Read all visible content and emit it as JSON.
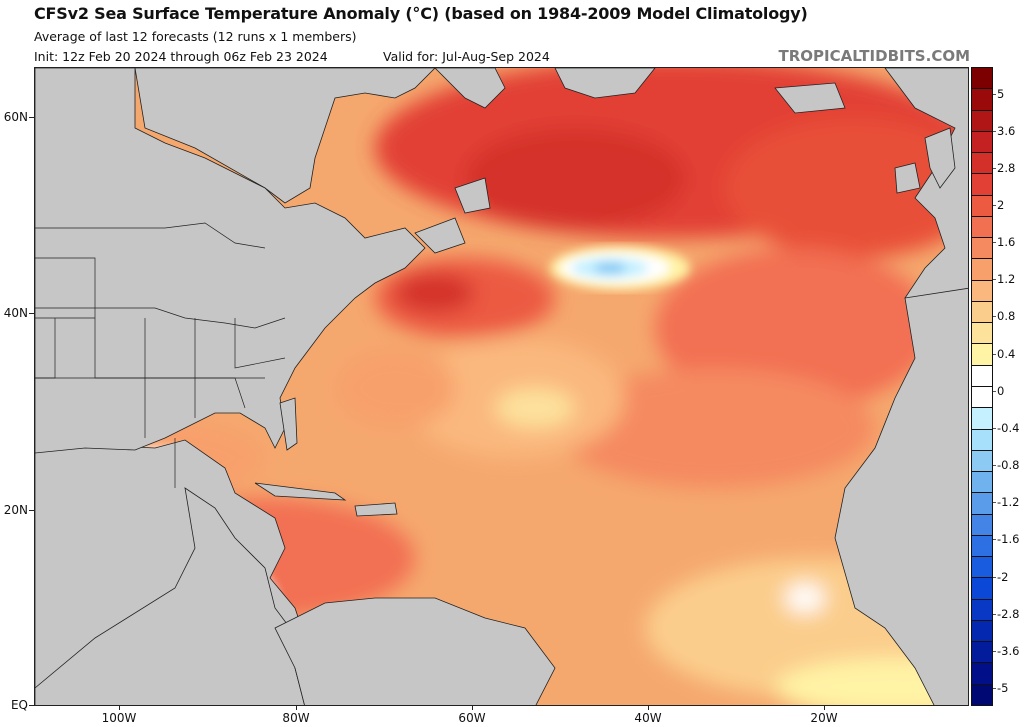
{
  "header": {
    "title": "CFSv2 Sea Surface Temperature Anomaly (°C) (based on 1984-2009 Model Climatology)",
    "subtitle": "Average of last 12 forecasts (12 runs x 1 members)",
    "init": "Init: 12z Feb 20 2024 through 06z Feb 23 2024",
    "valid": "Valid for: Jul-Aug-Sep 2024",
    "brand": "TROPICALTIDBITS.COM"
  },
  "axes": {
    "lat_labels": [
      "60N",
      "40N",
      "20N",
      "EQ"
    ],
    "lon_labels": [
      "100W",
      "80W",
      "60W",
      "40W",
      "20W"
    ]
  },
  "colorbar": {
    "labels": [
      "5",
      "3.6",
      "2.8",
      "2",
      "1.6",
      "1.2",
      "0.8",
      "0.4",
      "0",
      "-0.4",
      "-0.8",
      "-1.2",
      "-1.6",
      "-2",
      "-2.8",
      "-3.6",
      "-5"
    ],
    "colors": [
      "#7d0000",
      "#9b0a0a",
      "#b01616",
      "#c42222",
      "#d4302a",
      "#e24034",
      "#ec5a42",
      "#f27052",
      "#f58a60",
      "#f8a06c",
      "#fab87e",
      "#fbcd8c",
      "#fde29c",
      "#fff3a6",
      "#ffffff",
      "#ffffff",
      "#c4f0ff",
      "#a6e0fa",
      "#8ccaf4",
      "#70b2ee",
      "#5a9cea",
      "#4484e6",
      "#2c70e4",
      "#1a5ce0",
      "#0c48d8",
      "#0838c4",
      "#0428b0",
      "#021c9c",
      "#011088",
      "#000874"
    ]
  },
  "map_colors": {
    "land": "#c6c6c6",
    "ocean_base": "#f5a86e"
  }
}
